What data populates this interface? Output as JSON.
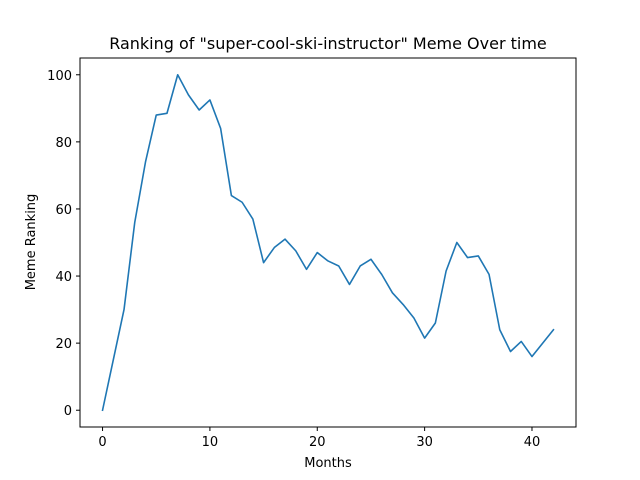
{
  "chart_data": {
    "type": "line",
    "title": "Ranking of \"super-cool-ski-instructor\" Meme Over time",
    "xlabel": "Months",
    "ylabel": "Meme Ranking",
    "xlim": [
      -2.1,
      44.1
    ],
    "ylim": [
      -5,
      105
    ],
    "xticks": [
      0,
      10,
      20,
      30,
      40
    ],
    "yticks": [
      0,
      20,
      40,
      60,
      80,
      100
    ],
    "grid": false,
    "line_color": "#1f77b4",
    "series": [
      {
        "x": [
          0,
          1,
          2,
          3,
          4,
          5,
          6,
          7,
          8,
          9,
          10,
          11,
          12,
          13,
          14,
          15,
          16,
          17,
          18,
          19,
          20,
          21,
          22,
          23,
          24,
          25,
          26,
          27,
          28,
          29,
          30,
          31,
          32,
          33,
          34,
          35,
          36,
          37,
          38,
          39,
          40,
          41,
          42
        ],
        "values": [
          0,
          15,
          30,
          56,
          74,
          88,
          88.5,
          100,
          94,
          89.5,
          92.5,
          84,
          64,
          62,
          57,
          44,
          48.5,
          51,
          47.5,
          42,
          47,
          44.5,
          43,
          37.5,
          43,
          45,
          40.5,
          35,
          31.5,
          27.5,
          21.5,
          26,
          41.5,
          50,
          45.5,
          46,
          40.5,
          24,
          17.5,
          20.5,
          16,
          20,
          24
        ]
      }
    ]
  }
}
